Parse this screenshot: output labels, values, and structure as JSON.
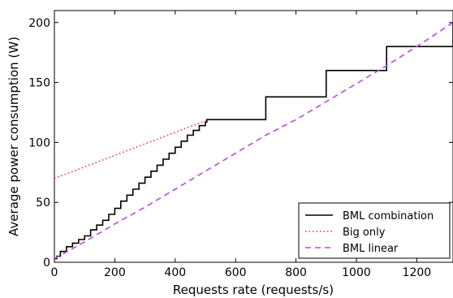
{
  "chart_data": {
    "type": "line",
    "title": "",
    "xlabel": "Requests rate (requests/s)",
    "ylabel": "Average power consumption (W)",
    "xlim": [
      0,
      1320
    ],
    "ylim": [
      0,
      210
    ],
    "xticks": [
      0,
      200,
      400,
      600,
      800,
      1000,
      1200
    ],
    "yticks": [
      0,
      50,
      100,
      150,
      200
    ],
    "grid": false,
    "legend_position": "bottom-right",
    "series": [
      {
        "name": "BML combination",
        "style": "solid",
        "color": "#000000",
        "x": [
          0,
          8,
          20,
          40,
          60,
          80,
          100,
          120,
          140,
          160,
          180,
          200,
          220,
          240,
          260,
          280,
          300,
          320,
          340,
          360,
          380,
          400,
          420,
          440,
          460,
          480,
          500,
          505,
          700,
          900,
          1100,
          1320
        ],
        "y": [
          3,
          5,
          9,
          13,
          16,
          19,
          22,
          27,
          31,
          35,
          40,
          45,
          51,
          56,
          61,
          66,
          71,
          76,
          81,
          86,
          91,
          96,
          101,
          106,
          110,
          114,
          117,
          119,
          138,
          160,
          180,
          200
        ]
      },
      {
        "name": "Big only",
        "style": "dotted",
        "color": "#e8393e",
        "x": [
          0,
          500
        ],
        "y": [
          70,
          118
        ]
      },
      {
        "name": "BML linear",
        "style": "dashed",
        "color": "#b44fdc",
        "x": [
          0,
          100,
          200,
          300,
          400,
          500,
          600,
          700,
          800,
          900,
          1000,
          1100,
          1200,
          1320
        ],
        "y": [
          3,
          17,
          32,
          46,
          61,
          76,
          91,
          106,
          119,
          134,
          149,
          164,
          180,
          200
        ]
      }
    ]
  }
}
